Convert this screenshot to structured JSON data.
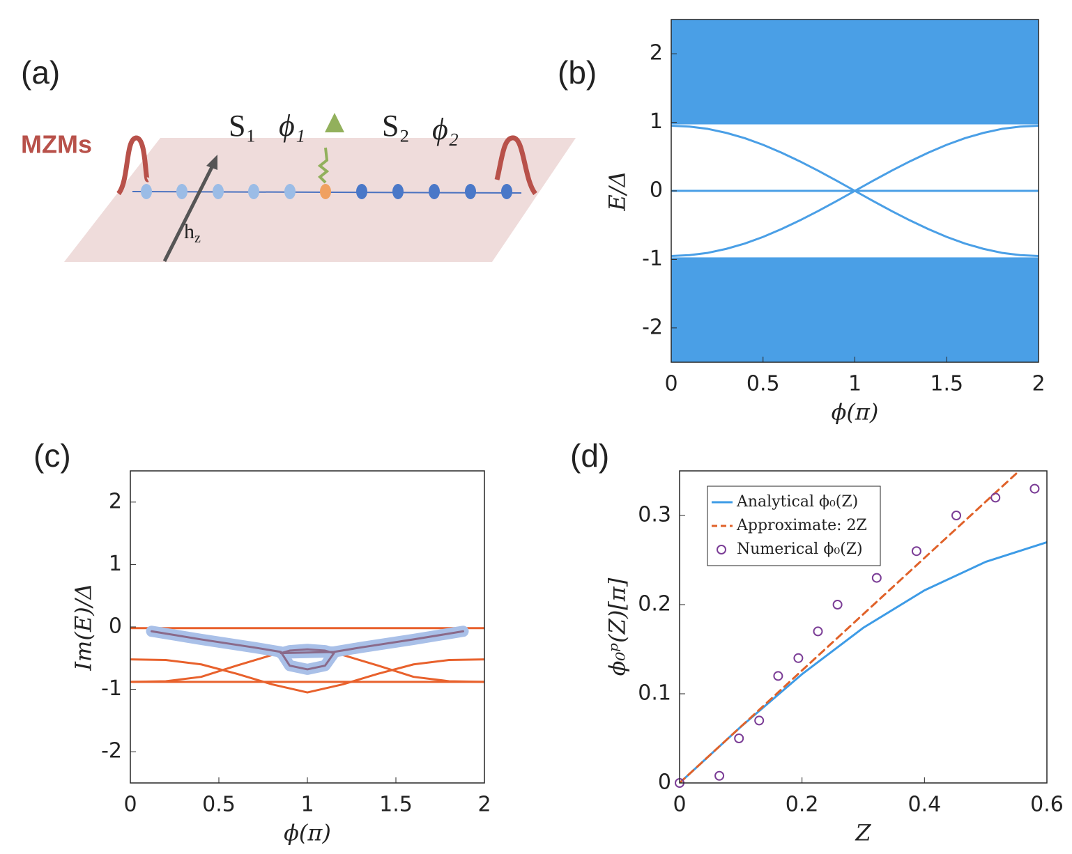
{
  "panel_a": {
    "label": "(a)",
    "mzm_label": "MZMs",
    "s1": "S₁",
    "phi1": "ϕ₁",
    "s2": "S₂",
    "phi2": "ϕ₂",
    "field": "h",
    "field_sub": "z"
  },
  "chart_data": [
    {
      "type": "line",
      "panel_label": "(b)",
      "xlabel": "ϕ(π)",
      "ylabel": "E/Δ",
      "xlim": [
        0,
        2
      ],
      "ylim": [
        -2.5,
        2.5
      ],
      "xticks": [
        0,
        0.5,
        1,
        1.5,
        2
      ],
      "yticks": [
        -2,
        -1,
        0,
        1,
        2
      ],
      "color": "#4a9fe6",
      "bands": [
        {
          "from": 0.97,
          "to": 2.5
        },
        {
          "from": -2.5,
          "to": -0.97
        }
      ],
      "x": [
        0,
        0.1,
        0.2,
        0.3,
        0.4,
        0.5,
        0.6,
        0.7,
        0.8,
        0.9,
        1,
        1.1,
        1.2,
        1.3,
        1.4,
        1.5,
        1.6,
        1.7,
        1.8,
        1.9,
        2
      ],
      "series": [
        {
          "color": "#4a9fe6",
          "values": [
            0.95,
            0.938,
            0.904,
            0.846,
            0.769,
            0.672,
            0.558,
            0.431,
            0.294,
            0.149,
            0,
            -0.149,
            -0.294,
            -0.431,
            -0.558,
            -0.672,
            -0.769,
            -0.846,
            -0.904,
            -0.938,
            -0.95
          ]
        },
        {
          "color": "#4a9fe6",
          "values": [
            -0.95,
            -0.938,
            -0.904,
            -0.846,
            -0.769,
            -0.672,
            -0.558,
            -0.431,
            -0.294,
            -0.149,
            0,
            0.149,
            0.294,
            0.431,
            0.558,
            0.672,
            0.769,
            0.846,
            0.904,
            0.938,
            0.95
          ]
        },
        {
          "color": "#4a9fe6",
          "values": [
            0,
            0,
            0,
            0,
            0,
            0,
            0,
            0,
            0,
            0,
            0,
            0,
            0,
            0,
            0,
            0,
            0,
            0,
            0,
            0,
            0
          ]
        }
      ]
    },
    {
      "type": "line",
      "panel_label": "(c)",
      "xlabel": "ϕ(π)",
      "ylabel": "Im(E)/Δ",
      "xlim": [
        0,
        2
      ],
      "ylim": [
        -2.5,
        2.5
      ],
      "xticks": [
        0,
        0.5,
        1,
        1.5,
        2
      ],
      "yticks": [
        -2,
        -1,
        0,
        1,
        2
      ],
      "series": [
        {
          "color": "#e8612c",
          "x": [
            0,
            2
          ],
          "values": [
            -0.02,
            -0.02
          ]
        },
        {
          "color": "#e8612c",
          "x": [
            0,
            2
          ],
          "values": [
            -0.88,
            -0.88
          ]
        },
        {
          "color": "#e8612c",
          "x": [
            0,
            0.2,
            0.4,
            0.6,
            0.8,
            1,
            1.2,
            1.4,
            1.6,
            1.8,
            2
          ],
          "values": [
            -0.52,
            -0.53,
            -0.6,
            -0.75,
            -0.92,
            -1.05,
            -0.92,
            -0.75,
            -0.6,
            -0.53,
            -0.52
          ]
        },
        {
          "color": "#e8612c",
          "x": [
            0,
            0.2,
            0.4,
            0.6,
            0.8,
            1,
            1.2,
            1.4,
            1.6,
            1.8,
            2
          ],
          "values": [
            -0.88,
            -0.87,
            -0.8,
            -0.62,
            -0.45,
            -0.38,
            -0.45,
            -0.62,
            -0.8,
            -0.87,
            -0.88
          ]
        },
        {
          "color": "#a9c0e8",
          "width": 16,
          "x": [
            0.12,
            0.4,
            0.7,
            0.85,
            0.9,
            1,
            1.1,
            1.15,
            1.1,
            1,
            0.9,
            0.85,
            1.15,
            1.3,
            1.6,
            1.88
          ],
          "values": [
            -0.07,
            -0.2,
            -0.33,
            -0.4,
            -0.62,
            -0.68,
            -0.62,
            -0.42,
            -0.38,
            -0.36,
            -0.38,
            -0.42,
            -0.4,
            -0.33,
            -0.2,
            -0.07
          ]
        },
        {
          "color": "#8a6a8a",
          "width": 3,
          "x": [
            0.12,
            0.4,
            0.7,
            0.85,
            0.9,
            1,
            1.1,
            1.15,
            1.1,
            1,
            0.9,
            0.85,
            1.15,
            1.3,
            1.6,
            1.88
          ],
          "values": [
            -0.07,
            -0.2,
            -0.33,
            -0.4,
            -0.62,
            -0.68,
            -0.62,
            -0.42,
            -0.38,
            -0.36,
            -0.38,
            -0.42,
            -0.4,
            -0.33,
            -0.2,
            -0.07
          ]
        }
      ]
    },
    {
      "type": "line",
      "panel_label": "(d)",
      "xlabel": "Z",
      "ylabel": "ϕ₀ᵖ(Z)[π]",
      "legend": "upper left",
      "xlim": [
        0,
        0.6
      ],
      "ylim": [
        0,
        0.35
      ],
      "xticks": [
        0,
        0.2,
        0.4,
        0.6
      ],
      "yticks": [
        0,
        0.1,
        0.2,
        0.3
      ],
      "series": [
        {
          "name": "Analytical ϕ₀(Z)",
          "color": "#3d9be6",
          "x": [
            0,
            0.1,
            0.2,
            0.3,
            0.4,
            0.5,
            0.6
          ],
          "values": [
            0,
            0.063,
            0.122,
            0.174,
            0.216,
            0.248,
            0.27
          ]
        },
        {
          "name": "Approximate: 2Z",
          "color": "#e0622a",
          "dash": true,
          "x": [
            0,
            0.55
          ],
          "values": [
            0,
            0.347
          ]
        },
        {
          "name": "Numerical ϕ₀(Z)",
          "color": "#7b3d96",
          "marker": "o",
          "x": [
            0,
            0.065,
            0.097,
            0.13,
            0.161,
            0.194,
            0.226,
            0.258,
            0.322,
            0.387,
            0.452,
            0.516,
            0.58
          ],
          "values": [
            0,
            0.008,
            0.05,
            0.07,
            0.12,
            0.14,
            0.17,
            0.2,
            0.23,
            0.26,
            0.3,
            0.32,
            0.33
          ]
        }
      ]
    }
  ]
}
